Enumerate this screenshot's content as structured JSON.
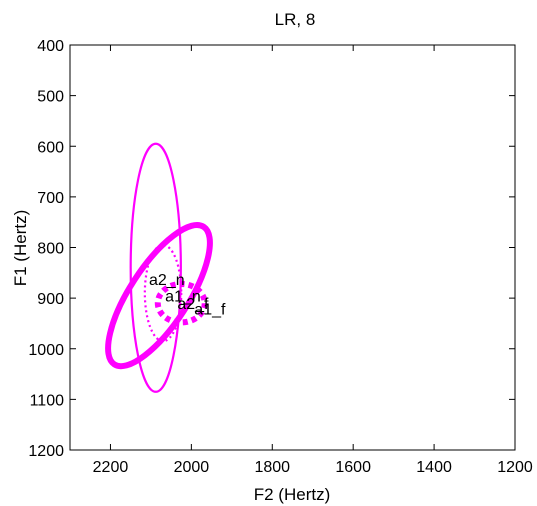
{
  "chart_data": {
    "type": "scatter",
    "title": "LR, 8",
    "xlabel": "F2 (Hertz)",
    "ylabel": "F1 (Hertz)",
    "xlim": [
      2300,
      1200
    ],
    "ylim": [
      1200,
      400
    ],
    "x_reversed": true,
    "y_reversed": true,
    "grid": false,
    "xticks": [
      2200,
      2000,
      1800,
      1600,
      1400,
      1200
    ],
    "yticks": [
      400,
      500,
      600,
      700,
      800,
      900,
      1000,
      1100,
      1200
    ],
    "xtick_labels": [
      "2200",
      "2000",
      "1800",
      "1600",
      "1400",
      "1200"
    ],
    "ytick_labels": [
      "400",
      "500",
      "600",
      "700",
      "800",
      "900",
      "1000",
      "1100",
      "1200"
    ],
    "color": "#ff00ff",
    "ellipses": [
      {
        "style": "thin-solid",
        "center": [
          2088,
          840
        ],
        "rx": 62,
        "ry": 245,
        "rotation_deg": 0
      },
      {
        "style": "dotted",
        "center": [
          2070,
          890
        ],
        "rx": 45,
        "ry": 95,
        "rotation_deg": 0
      },
      {
        "style": "thick-solid",
        "center": [
          2080,
          895
        ],
        "rx": 72,
        "ry": 162,
        "rotation_deg": 33
      },
      {
        "style": "thick-dotted",
        "center": [
          2025,
          910
        ],
        "rx": 58,
        "ry": 38,
        "rotation_deg": 0
      }
    ],
    "points": [
      {
        "label": "a2_n",
        "x": 2080,
        "y": 862
      },
      {
        "label": "a1_n",
        "x": 2040,
        "y": 895
      },
      {
        "label": "a2_f",
        "x": 2010,
        "y": 910
      },
      {
        "label": "a1_f",
        "x": 1968,
        "y": 920
      }
    ]
  }
}
